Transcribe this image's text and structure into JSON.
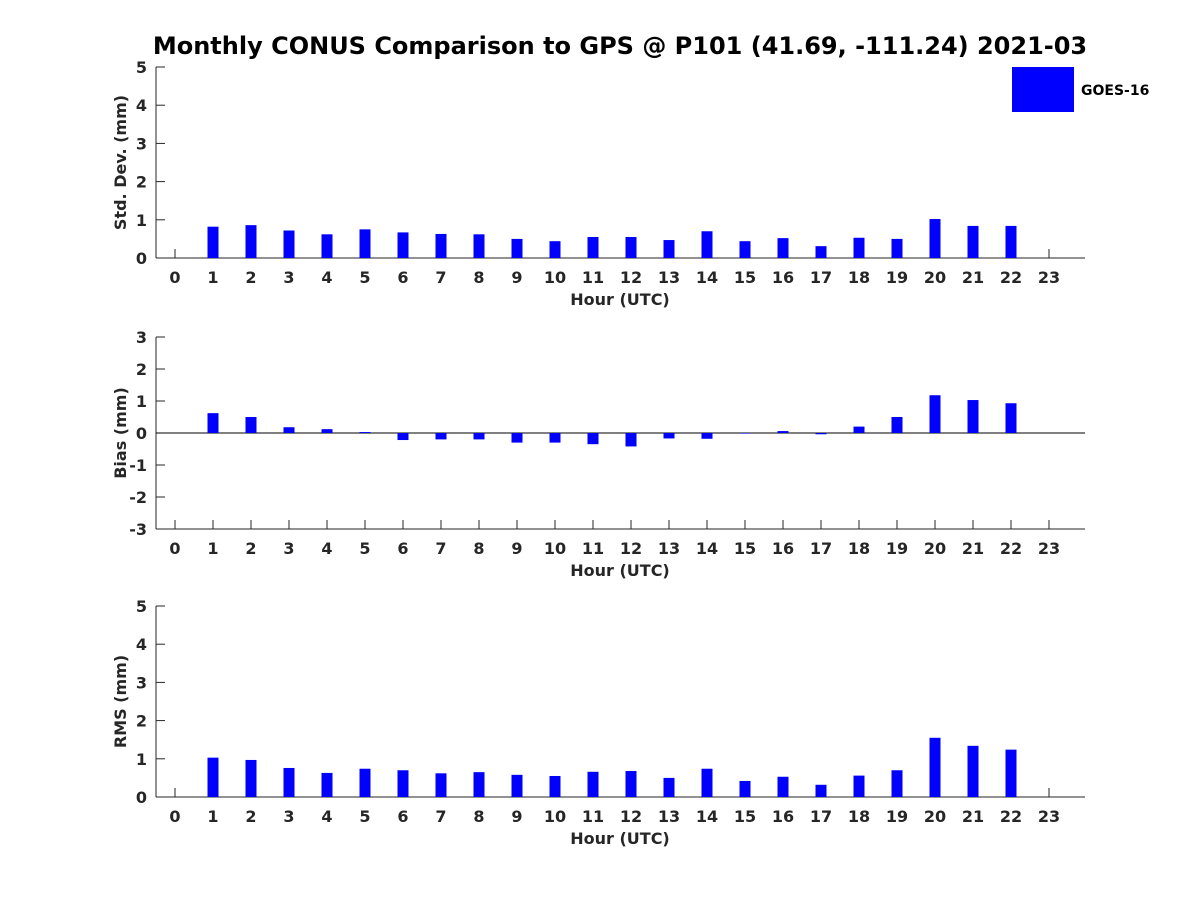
{
  "chart_data": {
    "title": "Monthly CONUS Comparison to GPS @ P101 (41.69, -111.24) 2021-03",
    "legend": {
      "entries": [
        "GOES-16"
      ],
      "placement": "top-right"
    },
    "colors": {
      "bar": "#0000ff",
      "axis": "#262626"
    },
    "panels": [
      {
        "type": "bar",
        "ylabel": "Std. Dev. (mm)",
        "xlabel": "Hour (UTC)",
        "ylim": [
          0,
          5
        ],
        "yticks": [
          "0",
          "1",
          "2",
          "3",
          "4",
          "5"
        ],
        "xticks": [
          "0",
          "1",
          "2",
          "3",
          "4",
          "5",
          "6",
          "7",
          "8",
          "9",
          "10",
          "11",
          "12",
          "13",
          "14",
          "15",
          "16",
          "17",
          "18",
          "19",
          "20",
          "21",
          "22",
          "23"
        ],
        "series": [
          {
            "name": "GOES-16",
            "values": [
              null,
              0.82,
              0.86,
              0.72,
              0.62,
              0.75,
              0.67,
              0.63,
              0.62,
              0.5,
              0.44,
              0.55,
              0.55,
              0.47,
              0.7,
              0.44,
              0.52,
              0.31,
              0.53,
              0.5,
              1.02,
              0.84,
              0.84,
              null
            ]
          }
        ]
      },
      {
        "type": "bar",
        "ylabel": "Bias (mm)",
        "xlabel": "Hour (UTC)",
        "ylim": [
          -3,
          3
        ],
        "yticks": [
          "-3",
          "-2",
          "-1",
          "0",
          "1",
          "2",
          "3"
        ],
        "zero_line": true,
        "xticks": [
          "0",
          "1",
          "2",
          "3",
          "4",
          "5",
          "6",
          "7",
          "8",
          "9",
          "10",
          "11",
          "12",
          "13",
          "14",
          "15",
          "16",
          "17",
          "18",
          "19",
          "20",
          "21",
          "22",
          "23"
        ],
        "series": [
          {
            "name": "GOES-16",
            "values": [
              null,
              0.62,
              0.5,
              0.18,
              0.12,
              0.03,
              -0.22,
              -0.2,
              -0.2,
              -0.3,
              -0.3,
              -0.35,
              -0.42,
              -0.17,
              -0.18,
              0.0,
              0.06,
              -0.04,
              0.2,
              0.5,
              1.18,
              1.03,
              0.93,
              null
            ]
          }
        ]
      },
      {
        "type": "bar",
        "ylabel": "RMS (mm)",
        "xlabel": "Hour (UTC)",
        "ylim": [
          0,
          5
        ],
        "yticks": [
          "0",
          "1",
          "2",
          "3",
          "4",
          "5"
        ],
        "xticks": [
          "0",
          "1",
          "2",
          "3",
          "4",
          "5",
          "6",
          "7",
          "8",
          "9",
          "10",
          "11",
          "12",
          "13",
          "14",
          "15",
          "16",
          "17",
          "18",
          "19",
          "20",
          "21",
          "22",
          "23"
        ],
        "series": [
          {
            "name": "GOES-16",
            "values": [
              null,
              1.03,
              0.97,
              0.76,
              0.63,
              0.74,
              0.7,
              0.62,
              0.65,
              0.58,
              0.55,
              0.66,
              0.68,
              0.5,
              0.74,
              0.42,
              0.53,
              0.32,
              0.56,
              0.7,
              1.55,
              1.34,
              1.24,
              null
            ]
          }
        ]
      }
    ]
  }
}
